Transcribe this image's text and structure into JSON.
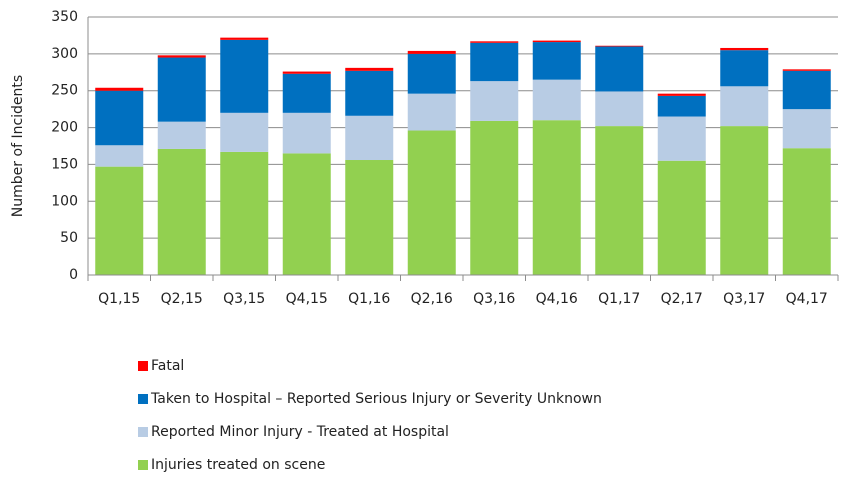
{
  "chart_data": {
    "type": "stacked_bar",
    "y_label": "Number of Incidents",
    "categories": [
      "Q1,15",
      "Q2,15",
      "Q3,15",
      "Q4,15",
      "Q1,16",
      "Q2,16",
      "Q3,16",
      "Q4,16",
      "Q1,17",
      "Q2,17",
      "Q3,17",
      "Q4,17"
    ],
    "series": [
      {
        "name": "Injuries treated on scene",
        "color": "#92d050",
        "values": [
          147,
          171,
          167,
          165,
          156,
          196,
          209,
          210,
          202,
          155,
          202,
          172
        ]
      },
      {
        "name": "Reported Minor Injury - Treated at Hospital",
        "color": "#b8cce4",
        "values": [
          29,
          37,
          53,
          55,
          60,
          50,
          54,
          55,
          47,
          60,
          54,
          53
        ]
      },
      {
        "name": "Taken to Hospital – Reported Serious Injury or Severity Unknown",
        "color": "#0070c0",
        "values": [
          74,
          87,
          99,
          53,
          61,
          54,
          52,
          51,
          61,
          28,
          49,
          52
        ]
      },
      {
        "name": "Fatal",
        "color": "#ff0000",
        "values": [
          4,
          3,
          3,
          3,
          4,
          4,
          2,
          2,
          1,
          3,
          3,
          2
        ]
      }
    ],
    "ylim": [
      0,
      350
    ],
    "yticks": [
      0,
      50,
      100,
      150,
      200,
      250,
      300,
      350
    ],
    "grid": true
  }
}
